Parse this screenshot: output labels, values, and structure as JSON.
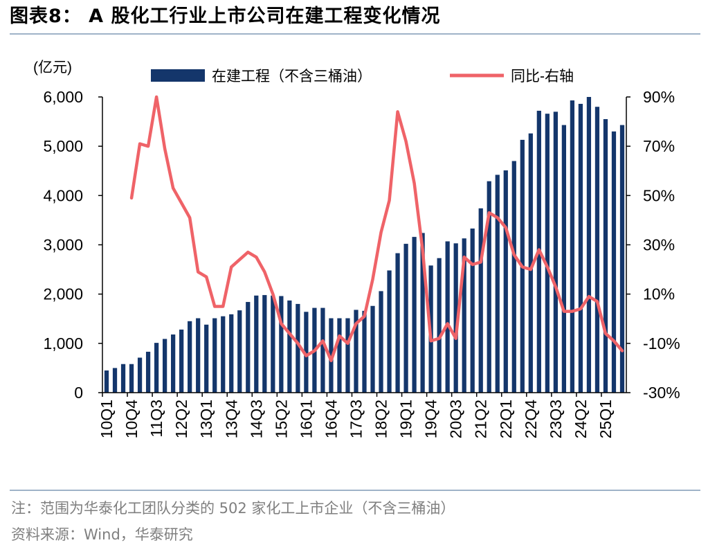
{
  "title": "图表8：  A 股化工行业上市公司在建工程变化情况",
  "footnote": "注：范围为华泰化工团队分类的 502 家化工上市企业（不含三桶油）",
  "source": "资料来源：Wind，华泰研究",
  "colors": {
    "bar": "#14366b",
    "line": "#ef6368",
    "rule": "#9fb3c8",
    "note": "#7f7f7f"
  },
  "chart_data": {
    "type": "bar",
    "title": "A 股化工行业上市公司在建工程变化情况",
    "y_unit_label": "(亿元)",
    "ylim": [
      0,
      6000
    ],
    "y_ticks": [
      "0",
      "1,000",
      "2,000",
      "3,000",
      "4,000",
      "5,000",
      "6,000"
    ],
    "y2lim": [
      -30,
      90
    ],
    "y2_ticks": [
      "-30%",
      "-10%",
      "10%",
      "30%",
      "50%",
      "70%",
      "90%"
    ],
    "legend_bar": "在建工程（不含三桶油）",
    "legend_line": "同比-右轴",
    "x_labels": [
      "10Q1",
      "10Q4",
      "11Q3",
      "12Q2",
      "13Q1",
      "13Q4",
      "14Q3",
      "15Q2",
      "16Q1",
      "16Q4",
      "17Q3",
      "18Q2",
      "19Q1",
      "19Q4",
      "20Q3",
      "21Q2",
      "22Q1",
      "22Q4",
      "23Q3",
      "24Q2",
      "25Q1"
    ],
    "categories": [
      "10Q1",
      "10Q2",
      "10Q3",
      "10Q4",
      "11Q1",
      "11Q2",
      "11Q3",
      "11Q4",
      "12Q1",
      "12Q2",
      "12Q3",
      "12Q4",
      "13Q1",
      "13Q2",
      "13Q3",
      "13Q4",
      "14Q1",
      "14Q2",
      "14Q3",
      "14Q4",
      "15Q1",
      "15Q2",
      "15Q3",
      "15Q4",
      "16Q1",
      "16Q2",
      "16Q3",
      "16Q4",
      "17Q1",
      "17Q2",
      "17Q3",
      "17Q4",
      "18Q1",
      "18Q2",
      "18Q3",
      "18Q4",
      "19Q1",
      "19Q2",
      "19Q3",
      "19Q4",
      "20Q1",
      "20Q2",
      "20Q3",
      "20Q4",
      "21Q1",
      "21Q2",
      "21Q3",
      "21Q4",
      "22Q1",
      "22Q2",
      "22Q3",
      "22Q4",
      "23Q1",
      "23Q2",
      "23Q3",
      "23Q4",
      "24Q1",
      "24Q2",
      "24Q3",
      "24Q4",
      "25Q1",
      "25Q2",
      "25Q3"
    ],
    "series": [
      {
        "name": "在建工程（不含三桶油）",
        "type": "bar",
        "axis": "left",
        "values": [
          450,
          500,
          580,
          580,
          710,
          830,
          1010,
          1090,
          1180,
          1280,
          1450,
          1510,
          1380,
          1510,
          1550,
          1590,
          1670,
          1840,
          1970,
          1980,
          1970,
          1960,
          1870,
          1800,
          1640,
          1720,
          1720,
          1510,
          1510,
          1510,
          1680,
          1660,
          1760,
          2060,
          2480,
          2830,
          3020,
          3160,
          3240,
          2580,
          2730,
          3070,
          3030,
          3130,
          3330,
          3740,
          4290,
          4420,
          4510,
          4700,
          5130,
          5260,
          5720,
          5660,
          5700,
          5430,
          5930,
          5860,
          6000,
          5800,
          5550,
          5300,
          5430
        ]
      },
      {
        "name": "同比-右轴",
        "type": "line",
        "axis": "right",
        "values": [
          null,
          null,
          null,
          49,
          71,
          70,
          90,
          69,
          53,
          47,
          41,
          19,
          17,
          5,
          5,
          21,
          24,
          27,
          25,
          19,
          10,
          -2,
          -6,
          -10,
          -15,
          -13,
          -9,
          -17,
          -7,
          -10,
          -2,
          1,
          16,
          35,
          48,
          84,
          72,
          55,
          28,
          -9,
          -8,
          -2,
          -8,
          25,
          22,
          23,
          43,
          41,
          37,
          26,
          21,
          20,
          28,
          21,
          13,
          3,
          3,
          4,
          9,
          7,
          -6,
          -9,
          -13
        ]
      }
    ]
  }
}
